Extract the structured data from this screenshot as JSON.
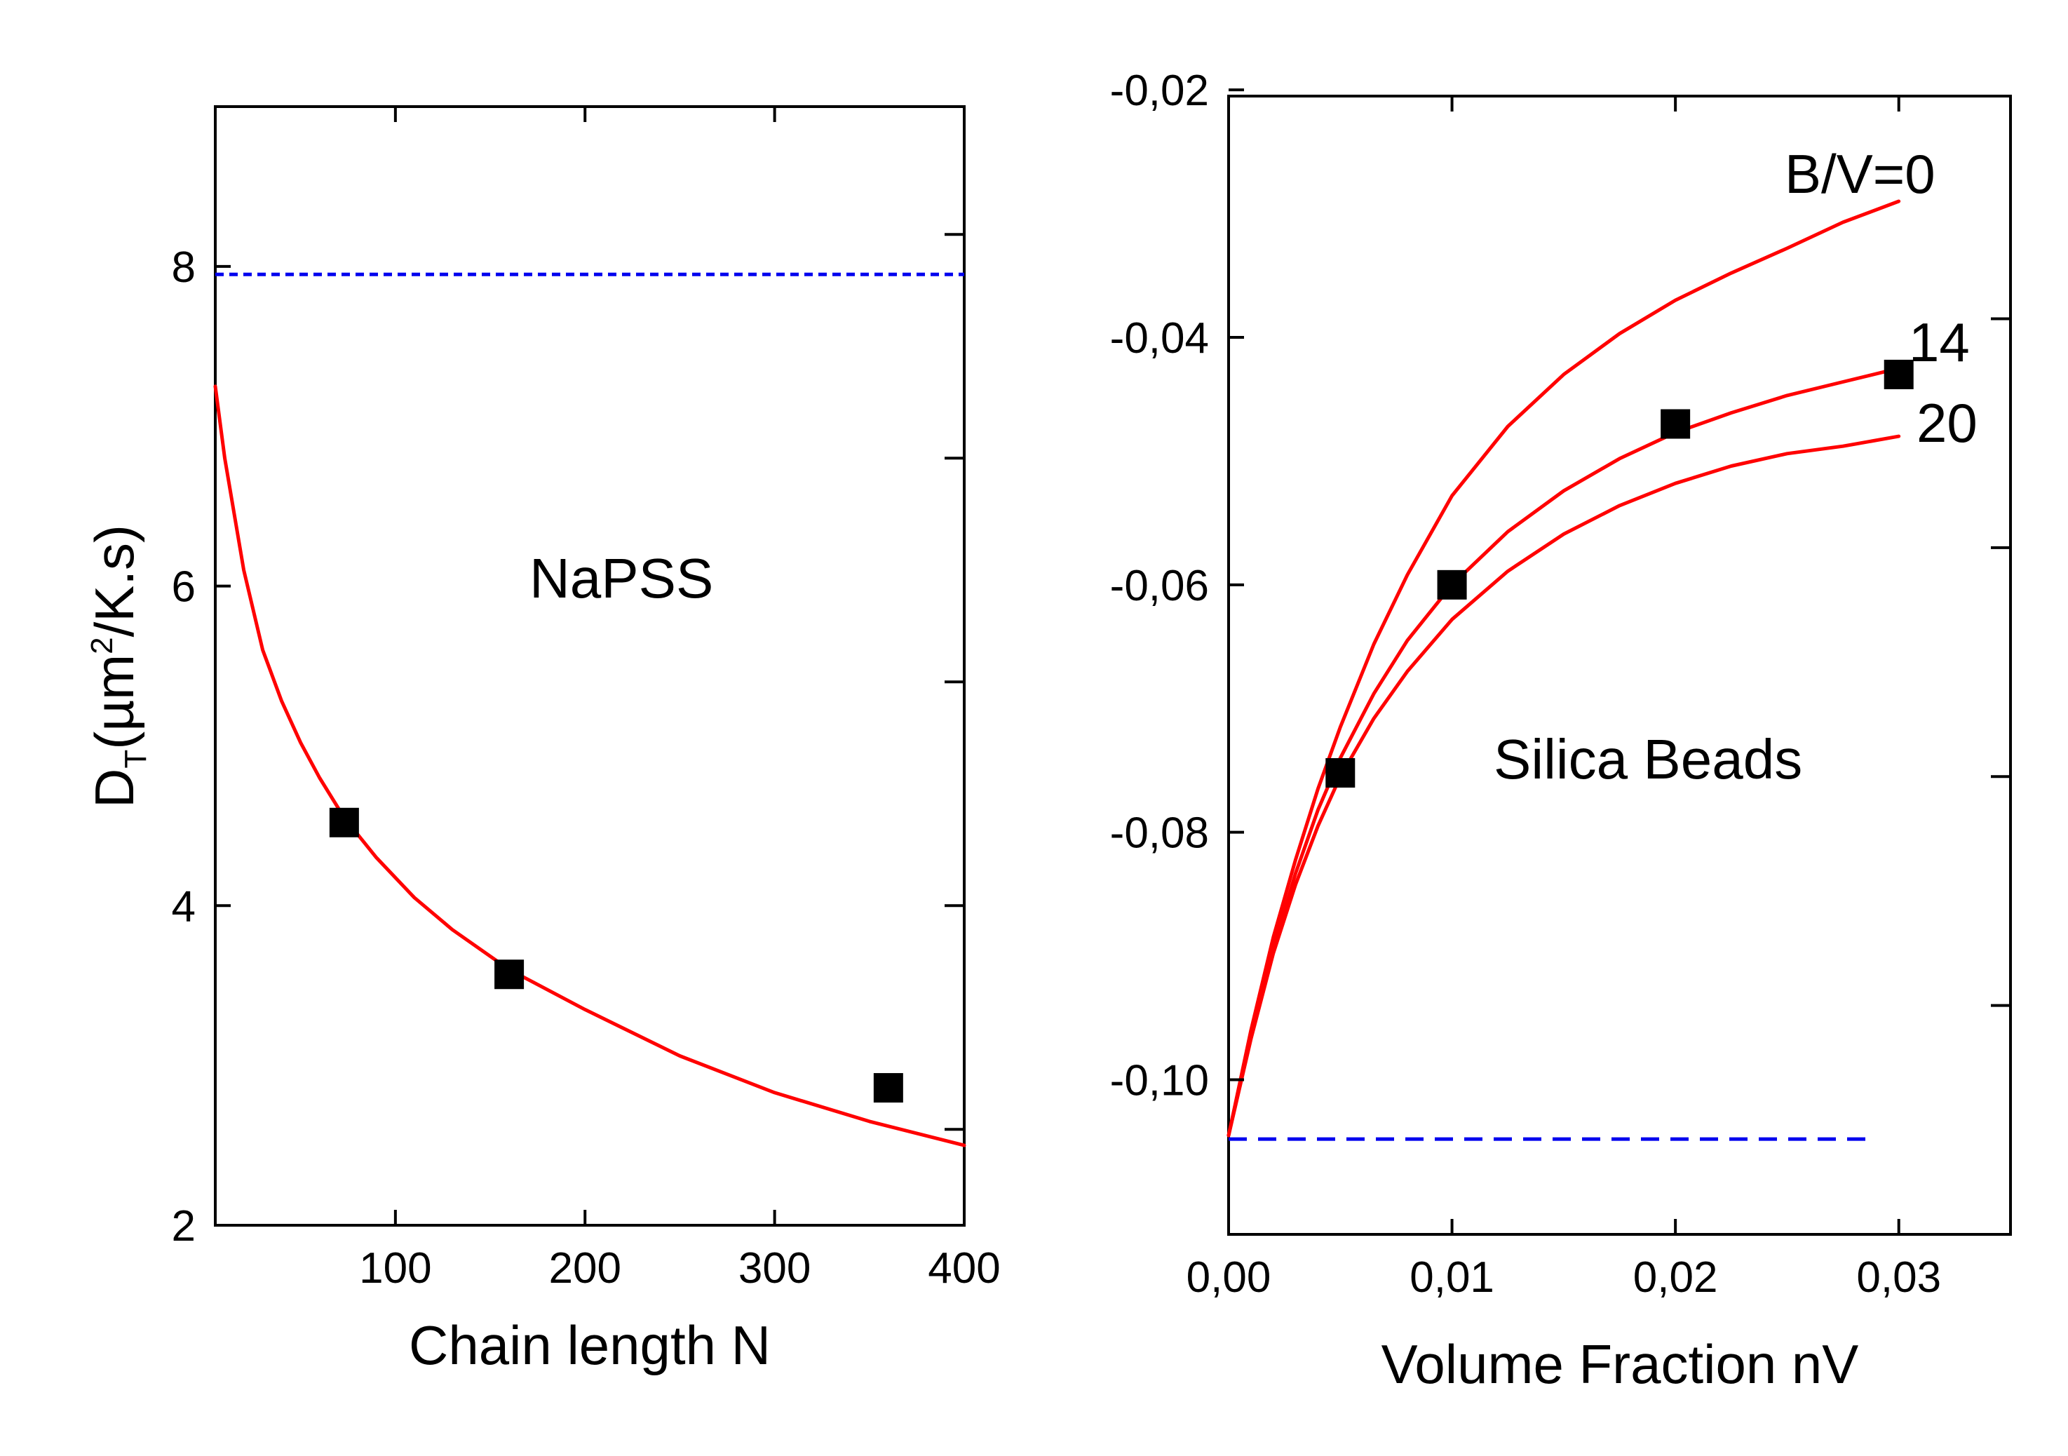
{
  "chart_data": [
    {
      "type": "scatter",
      "panel": "left",
      "annotation": "NaPSS",
      "xlabel": "Chain length N",
      "ylabel_main": "D",
      "ylabel_sub": "T",
      "ylabel_mid": "(µm",
      "ylabel_sup": "2",
      "ylabel_tail": "/K.s)",
      "xlim": [
        5,
        400
      ],
      "ylim": [
        2,
        9
      ],
      "xticks": [
        {
          "value": 100,
          "label": "100"
        },
        {
          "value": 200,
          "label": "200"
        },
        {
          "value": 300,
          "label": "300"
        },
        {
          "value": 400,
          "label": "400"
        }
      ],
      "yticks": [
        {
          "value": 2,
          "label": "2"
        },
        {
          "value": 4,
          "label": "4"
        },
        {
          "value": 6,
          "label": "6"
        },
        {
          "value": 8,
          "label": "8"
        }
      ],
      "right_ticks": [
        2.6,
        4.0,
        5.4,
        6.8,
        8.2
      ],
      "points": [
        {
          "x": 73,
          "y": 4.52
        },
        {
          "x": 160,
          "y": 3.57
        },
        {
          "x": 360,
          "y": 2.86
        }
      ],
      "reference_line": {
        "y": 7.95,
        "color": "#0000ee",
        "style": "dotted"
      },
      "fit_curve": {
        "color": "#ff0000",
        "x": [
          5,
          10,
          20,
          30,
          40,
          50,
          60,
          73,
          90,
          110,
          130,
          160,
          200,
          250,
          300,
          350,
          400
        ],
        "y": [
          7.25,
          6.8,
          6.1,
          5.6,
          5.28,
          5.02,
          4.8,
          4.55,
          4.3,
          4.05,
          3.85,
          3.6,
          3.35,
          3.06,
          2.83,
          2.65,
          2.5
        ]
      }
    },
    {
      "type": "scatter",
      "panel": "right",
      "annotation": "Silica Beads",
      "xlabel": "Volume Fraction nV",
      "xlim": [
        0,
        0.035
      ],
      "ylim": [
        -0.1125,
        -0.0205
      ],
      "xticks": [
        {
          "value": 0,
          "label": "0,00"
        },
        {
          "value": 0.01,
          "label": "0,01"
        },
        {
          "value": 0.02,
          "label": "0,02"
        },
        {
          "value": 0.03,
          "label": "0,03"
        }
      ],
      "yticks": [
        {
          "value": -0.02,
          "label": "-0,02"
        },
        {
          "value": -0.04,
          "label": "-0,04"
        },
        {
          "value": -0.06,
          "label": "-0,06"
        },
        {
          "value": -0.08,
          "label": "-0,08"
        },
        {
          "value": -0.1,
          "label": "-0,10"
        }
      ],
      "right_ticks": [
        -0.0385,
        -0.057,
        -0.0755,
        -0.094
      ],
      "points": [
        {
          "x": 0.005,
          "y": -0.0752
        },
        {
          "x": 0.01,
          "y": -0.06
        },
        {
          "x": 0.02,
          "y": -0.047
        },
        {
          "x": 0.03,
          "y": -0.043
        }
      ],
      "reference_line": {
        "y": -0.1048,
        "x_end": 0.029,
        "color": "#0000ee",
        "style": "dashed"
      },
      "series": [
        {
          "name": "B/V=0",
          "color": "#ff0000",
          "x": [
            0,
            0.001,
            0.002,
            0.003,
            0.004,
            0.005,
            0.0065,
            0.008,
            0.01,
            0.0125,
            0.015,
            0.0175,
            0.02,
            0.0225,
            0.025,
            0.0275,
            0.03
          ],
          "y": [
            -0.1045,
            -0.096,
            -0.0885,
            -0.0822,
            -0.0765,
            -0.0715,
            -0.0648,
            -0.0592,
            -0.0528,
            -0.0472,
            -0.043,
            -0.0397,
            -0.037,
            -0.0348,
            -0.0328,
            -0.0307,
            -0.029
          ]
        },
        {
          "name": "14",
          "color": "#ff0000",
          "x": [
            0,
            0.001,
            0.002,
            0.003,
            0.004,
            0.005,
            0.0065,
            0.008,
            0.01,
            0.0125,
            0.015,
            0.0175,
            0.02,
            0.0225,
            0.025,
            0.0275,
            0.03
          ],
          "y": [
            -0.1045,
            -0.0965,
            -0.0893,
            -0.0833,
            -0.0782,
            -0.074,
            -0.0688,
            -0.0645,
            -0.06,
            -0.0557,
            -0.0524,
            -0.0498,
            -0.0477,
            -0.0461,
            -0.0447,
            -0.0436,
            -0.0425
          ]
        },
        {
          "name": "20",
          "color": "#ff0000",
          "x": [
            0,
            0.001,
            0.002,
            0.003,
            0.004,
            0.005,
            0.0065,
            0.008,
            0.01,
            0.0125,
            0.015,
            0.0175,
            0.02,
            0.0225,
            0.025,
            0.0275,
            0.03
          ],
          "y": [
            -0.1045,
            -0.0967,
            -0.0898,
            -0.0842,
            -0.0795,
            -0.0755,
            -0.0708,
            -0.067,
            -0.0628,
            -0.0589,
            -0.0559,
            -0.0536,
            -0.0518,
            -0.0504,
            -0.0494,
            -0.0488,
            -0.048
          ]
        }
      ]
    }
  ]
}
